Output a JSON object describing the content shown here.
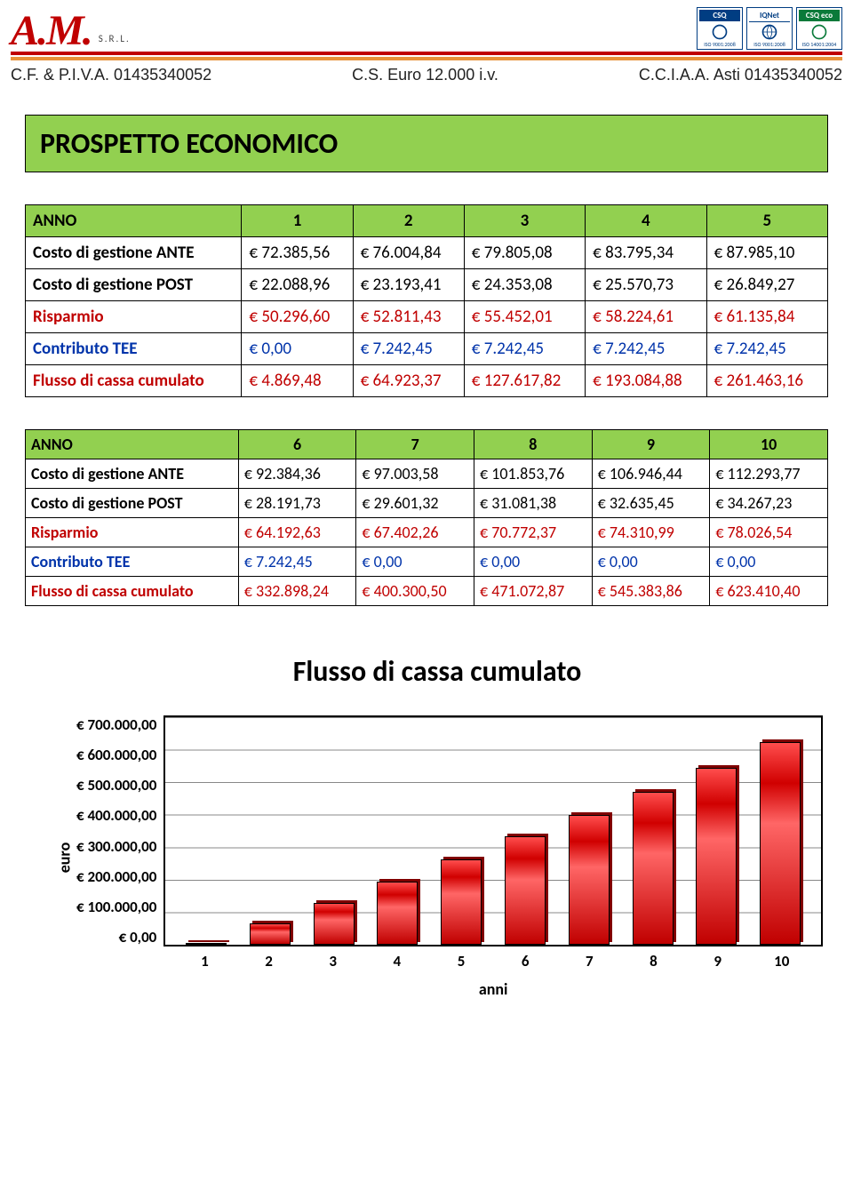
{
  "header": {
    "logo_main": "A.M.",
    "logo_sub": "S.R.L.",
    "badges": [
      {
        "top": "CSQ",
        "bottom": "ISO 9001:2008",
        "color": "blue"
      },
      {
        "top": "IQNet",
        "bottom": "ISO 9001:2008",
        "color": "blue"
      },
      {
        "top": "CSQ eco",
        "bottom": "ISO 14001:2004",
        "color": "green"
      }
    ],
    "line1": "C.F. & P.I.V.A. 01435340052",
    "line2": "C.S. Euro 12.000 i.v.",
    "line3": "C.C.I.A.A. Asti 01435340052"
  },
  "title": "PROSPETTO ECONOMICO",
  "table1": {
    "header": [
      "ANNO",
      "1",
      "2",
      "3",
      "4",
      "5"
    ],
    "rows": [
      {
        "label": "Costo di gestione ANTE",
        "cells": [
          "€ 72.385,56",
          "€ 76.004,84",
          "€ 79.805,08",
          "€ 83.795,34",
          "€ 87.985,10"
        ],
        "style": "normal"
      },
      {
        "label": "Costo di gestione POST",
        "cells": [
          "€ 22.088,96",
          "€ 23.193,41",
          "€ 24.353,08",
          "€ 25.570,73",
          "€ 26.849,27"
        ],
        "style": "normal"
      },
      {
        "label": "Risparmio",
        "cells": [
          "€ 50.296,60",
          "€ 52.811,43",
          "€ 55.452,01",
          "€ 58.224,61",
          "€ 61.135,84"
        ],
        "style": "red"
      },
      {
        "label": "Contributo TEE",
        "cells": [
          "€ 0,00",
          "€ 7.242,45",
          "€ 7.242,45",
          "€ 7.242,45",
          "€ 7.242,45"
        ],
        "style": "blue"
      },
      {
        "label": "Flusso di cassa cumulato",
        "cells": [
          "€ 4.869,48",
          "€ 64.923,37",
          "€ 127.617,82",
          "€ 193.084,88",
          "€ 261.463,16"
        ],
        "style": "red"
      }
    ]
  },
  "table2": {
    "header": [
      "ANNO",
      "6",
      "7",
      "8",
      "9",
      "10"
    ],
    "rows": [
      {
        "label": "Costo di gestione ANTE",
        "cells": [
          "€ 92.384,36",
          "€ 97.003,58",
          "€ 101.853,76",
          "€ 106.946,44",
          "€ 112.293,77"
        ],
        "style": "normal"
      },
      {
        "label": "Costo di gestione POST",
        "cells": [
          "€ 28.191,73",
          "€ 29.601,32",
          "€ 31.081,38",
          "€ 32.635,45",
          "€ 34.267,23"
        ],
        "style": "normal"
      },
      {
        "label": "Risparmio",
        "cells": [
          "€ 64.192,63",
          "€ 67.402,26",
          "€ 70.772,37",
          "€ 74.310,99",
          "€ 78.026,54"
        ],
        "style": "red"
      },
      {
        "label": "Contributo TEE",
        "cells": [
          "€ 7.242,45",
          "€ 0,00",
          "€ 0,00",
          "€ 0,00",
          "€ 0,00"
        ],
        "style": "blue"
      },
      {
        "label": "Flusso di cassa cumulato",
        "cells": [
          "€ 332.898,24",
          "€ 400.300,50",
          "€ 471.072,87",
          "€ 545.383,86",
          "€ 623.410,40"
        ],
        "style": "red"
      }
    ]
  },
  "chart": {
    "type": "bar",
    "title": "Flusso di cassa cumulato",
    "ylabel": "euro",
    "xlabel": "anni",
    "categories": [
      "1",
      "2",
      "3",
      "4",
      "5",
      "6",
      "7",
      "8",
      "9",
      "10"
    ],
    "values": [
      4869.48,
      64923.37,
      127617.82,
      193084.88,
      261463.16,
      332898.24,
      400300.5,
      471072.87,
      545383.86,
      623410.4
    ],
    "yticks": [
      "€ 700.000,00",
      "€ 600.000,00",
      "€ 500.000,00",
      "€ 400.000,00",
      "€ 300.000,00",
      "€ 200.000,00",
      "€ 100.000,00",
      "€ 0,00"
    ],
    "ylim": [
      0,
      700000
    ],
    "bar_color": "#C00000",
    "bar_border": "#000000",
    "grid_color": "#888888",
    "background": "#ffffff",
    "title_fontsize": 32,
    "label_fontsize": 18
  },
  "colors": {
    "accent_green": "#92D050",
    "red": "#C00000",
    "blue": "#0033AA",
    "orange": "#E8923A"
  }
}
